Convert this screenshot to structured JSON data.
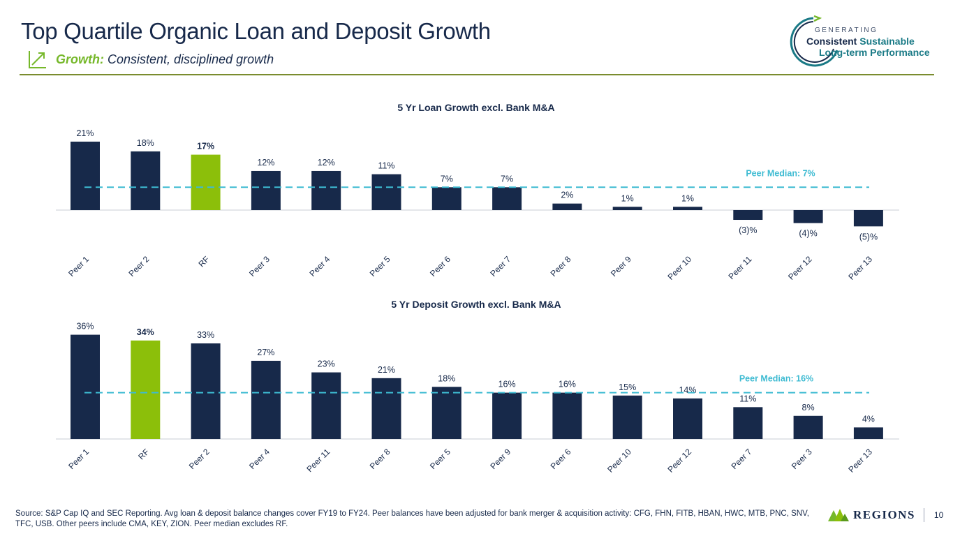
{
  "header": {
    "title": "Top Quartile Organic Loan and Deposit Growth",
    "subtitle_lead": "Growth:",
    "subtitle_rest": "Consistent, disciplined growth",
    "growth_icon": "trend-up-arrow-icon"
  },
  "logo": {
    "line1": "GENERATING",
    "line2_a": "Consistent",
    "line2_b": "Sustainable",
    "line3": "Long-term Performance",
    "icon": "circular-arrow-icon"
  },
  "colors": {
    "navy": "#17294a",
    "green": "#8cbf0a",
    "median": "#3ebbd2",
    "teal": "#1a7a86"
  },
  "chart_data": [
    {
      "type": "bar",
      "title": "5 Yr Loan Growth excl. Bank M&A",
      "categories": [
        "Peer 1",
        "Peer 2",
        "RF",
        "Peer 3",
        "Peer 4",
        "Peer 5",
        "Peer 6",
        "Peer 7",
        "Peer 8",
        "Peer 9",
        "Peer 10",
        "Peer 11",
        "Peer 12",
        "Peer 13"
      ],
      "values": [
        21,
        18,
        17,
        12,
        12,
        11,
        7,
        7,
        2,
        1,
        1,
        -3,
        -4,
        -5
      ],
      "labels": [
        "21%",
        "18%",
        "17%",
        "12%",
        "12%",
        "11%",
        "7%",
        "7%",
        "2%",
        "1%",
        "1%",
        "(3)%",
        "(4)%",
        "(5)%"
      ],
      "highlight": "RF",
      "median": 7,
      "median_label": "Peer Median: 7%"
    },
    {
      "type": "bar",
      "title": "5 Yr Deposit Growth excl. Bank M&A",
      "categories": [
        "Peer 1",
        "RF",
        "Peer 2",
        "Peer 4",
        "Peer 11",
        "Peer 8",
        "Peer 5",
        "Peer 9",
        "Peer 6",
        "Peer 10",
        "Peer 12",
        "Peer 7",
        "Peer 3",
        "Peer 13"
      ],
      "values": [
        36,
        34,
        33,
        27,
        23,
        21,
        18,
        16,
        16,
        15,
        14,
        11,
        8,
        4
      ],
      "labels": [
        "36%",
        "34%",
        "33%",
        "27%",
        "23%",
        "21%",
        "18%",
        "16%",
        "16%",
        "15%",
        "14%",
        "11%",
        "8%",
        "4%"
      ],
      "highlight": "RF",
      "median": 16,
      "median_label": "Peer Median: 16%"
    }
  ],
  "footer": {
    "source": "Source: S&P Cap IQ and SEC Reporting. Avg loan & deposit balance changes cover FY19 to FY24. Peer balances have been adjusted for bank merger & acquisition activity: CFG, FHN, FITB, HBAN, HWC, MTB, PNC, SNV, TFC, USB.  Other peers include CMA, KEY, ZION. Peer median excludes RF.",
    "brand": "REGIONS",
    "brand_icon": "regions-pyramid-icon",
    "page": "10"
  }
}
